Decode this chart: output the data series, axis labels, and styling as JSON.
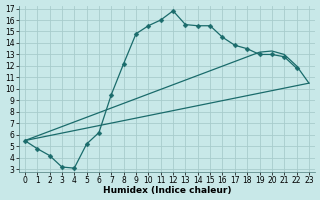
{
  "xlabel": "Humidex (Indice chaleur)",
  "bg_color": "#c8e8e8",
  "grid_color": "#a8cccc",
  "line_color": "#1a6b6b",
  "curve1_x": [
    0,
    1,
    2,
    3,
    4,
    5,
    6,
    7,
    8,
    9,
    10,
    11,
    12,
    13,
    14,
    15,
    16,
    17,
    18,
    19,
    20,
    21,
    22
  ],
  "curve1_y": [
    5.5,
    4.8,
    4.2,
    3.2,
    3.1,
    5.2,
    6.2,
    9.5,
    12.2,
    14.8,
    15.5,
    16.0,
    16.8,
    15.6,
    15.5,
    15.5,
    14.5,
    13.8,
    13.5,
    13.0,
    13.0,
    12.8,
    11.8
  ],
  "curve2_x": [
    0,
    23
  ],
  "curve2_y": [
    5.5,
    10.5
  ],
  "curve3_x": [
    0,
    19,
    20,
    21,
    22,
    23
  ],
  "curve3_y": [
    5.5,
    13.2,
    13.3,
    13.0,
    12.0,
    10.5
  ],
  "xlim": [
    -0.5,
    23.5
  ],
  "ylim": [
    2.8,
    17.2
  ],
  "xticks": [
    0,
    1,
    2,
    3,
    4,
    5,
    6,
    7,
    8,
    9,
    10,
    11,
    12,
    13,
    14,
    15,
    16,
    17,
    18,
    19,
    20,
    21,
    22,
    23
  ],
  "yticks": [
    3,
    4,
    5,
    6,
    7,
    8,
    9,
    10,
    11,
    12,
    13,
    14,
    15,
    16,
    17
  ],
  "marker_size": 2.5,
  "lw": 0.9,
  "tick_fontsize": 5.5,
  "xlabel_fontsize": 6.5
}
